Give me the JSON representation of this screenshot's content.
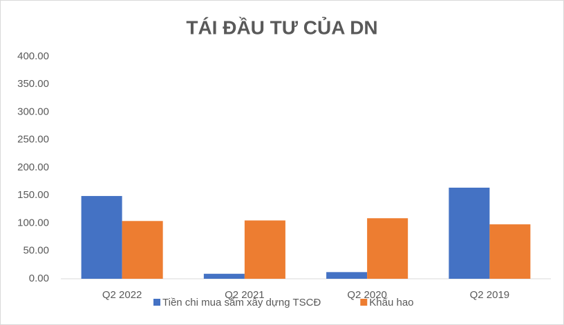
{
  "chart_data": {
    "type": "bar",
    "title": "TÁI ĐẦU TƯ CỦA DN",
    "categories": [
      "Q2 2022",
      "Q2 2021",
      "Q2 2020",
      "Q2 2019"
    ],
    "series": [
      {
        "name": "Tiền chi mua sắm xây dựng TSCĐ",
        "color": "#4472c4",
        "values": [
          149,
          9,
          12,
          164
        ]
      },
      {
        "name": "Khấu hao",
        "color": "#ed7d31",
        "values": [
          104,
          105,
          109,
          98
        ]
      }
    ],
    "ylim": [
      0,
      400
    ],
    "yticks": [
      {
        "value": 0,
        "label": "0.00"
      },
      {
        "value": 50,
        "label": "50.00"
      },
      {
        "value": 100,
        "label": "100.00"
      },
      {
        "value": 150,
        "label": "150.00"
      },
      {
        "value": 200,
        "label": "200.00"
      },
      {
        "value": 250,
        "label": "250.00"
      },
      {
        "value": 300,
        "label": "300.00"
      },
      {
        "value": 350,
        "label": "350.00"
      },
      {
        "value": 400,
        "label": "400.00"
      }
    ],
    "grid": false,
    "legend": "bottom"
  }
}
